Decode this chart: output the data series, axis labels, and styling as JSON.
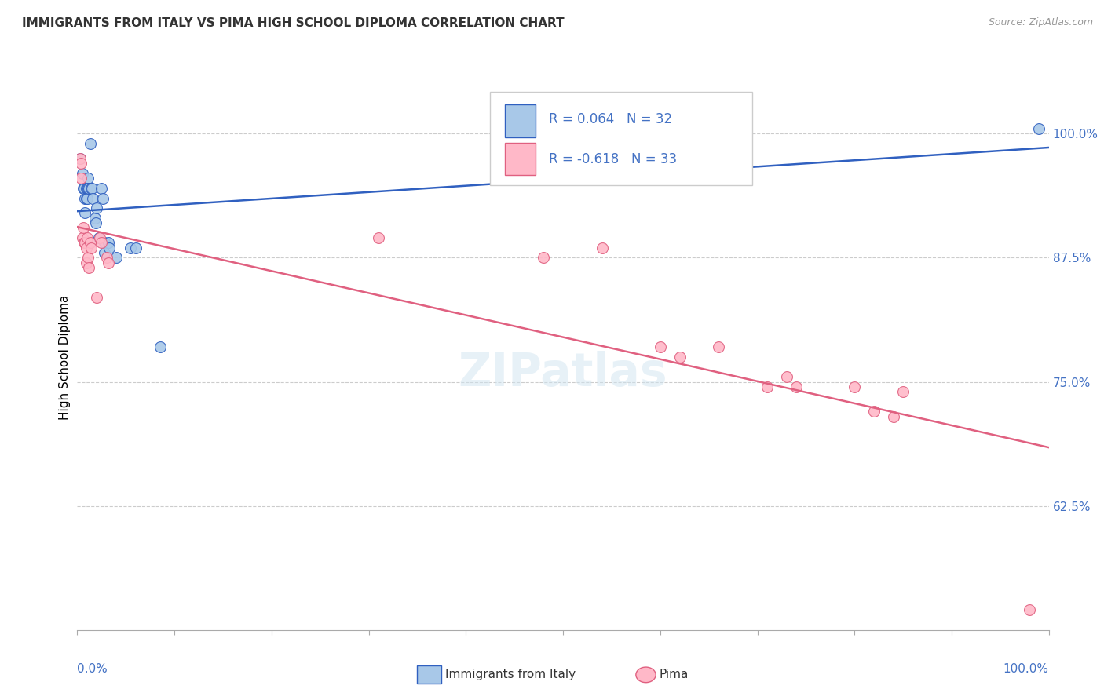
{
  "title": "IMMIGRANTS FROM ITALY VS PIMA HIGH SCHOOL DIPLOMA CORRELATION CHART",
  "source": "Source: ZipAtlas.com",
  "ylabel": "High School Diploma",
  "legend_label1": "Immigrants from Italy",
  "legend_label2": "Pima",
  "r1": 0.064,
  "n1": 32,
  "r2": -0.618,
  "n2": 33,
  "color_blue": "#A8C8E8",
  "color_pink": "#FFB8C8",
  "color_blue_line": "#3060C0",
  "color_pink_line": "#E06080",
  "color_blue_text": "#4472C4",
  "color_axis_text": "#4472C4",
  "ytick_labels": [
    "62.5%",
    "75.0%",
    "87.5%",
    "100.0%"
  ],
  "ytick_values": [
    0.625,
    0.75,
    0.875,
    1.0
  ],
  "xlim": [
    0.0,
    1.0
  ],
  "ylim": [
    0.5,
    1.05
  ],
  "blue_points": [
    [
      0.003,
      0.975
    ],
    [
      0.005,
      0.96
    ],
    [
      0.006,
      0.945
    ],
    [
      0.007,
      0.945
    ],
    [
      0.008,
      0.935
    ],
    [
      0.008,
      0.92
    ],
    [
      0.009,
      0.945
    ],
    [
      0.009,
      0.935
    ],
    [
      0.01,
      0.945
    ],
    [
      0.01,
      0.935
    ],
    [
      0.011,
      0.955
    ],
    [
      0.011,
      0.945
    ],
    [
      0.012,
      0.945
    ],
    [
      0.013,
      0.99
    ],
    [
      0.014,
      0.945
    ],
    [
      0.015,
      0.945
    ],
    [
      0.016,
      0.935
    ],
    [
      0.018,
      0.915
    ],
    [
      0.019,
      0.91
    ],
    [
      0.02,
      0.925
    ],
    [
      0.022,
      0.895
    ],
    [
      0.025,
      0.945
    ],
    [
      0.026,
      0.935
    ],
    [
      0.028,
      0.89
    ],
    [
      0.028,
      0.88
    ],
    [
      0.032,
      0.89
    ],
    [
      0.033,
      0.885
    ],
    [
      0.04,
      0.875
    ],
    [
      0.055,
      0.885
    ],
    [
      0.06,
      0.885
    ],
    [
      0.085,
      0.785
    ],
    [
      0.99,
      1.005
    ]
  ],
  "pink_points": [
    [
      0.003,
      0.975
    ],
    [
      0.004,
      0.97
    ],
    [
      0.004,
      0.955
    ],
    [
      0.005,
      0.895
    ],
    [
      0.006,
      0.905
    ],
    [
      0.007,
      0.89
    ],
    [
      0.008,
      0.89
    ],
    [
      0.009,
      0.885
    ],
    [
      0.009,
      0.87
    ],
    [
      0.01,
      0.895
    ],
    [
      0.011,
      0.875
    ],
    [
      0.012,
      0.865
    ],
    [
      0.013,
      0.89
    ],
    [
      0.014,
      0.885
    ],
    [
      0.02,
      0.835
    ],
    [
      0.023,
      0.895
    ],
    [
      0.025,
      0.89
    ],
    [
      0.03,
      0.875
    ],
    [
      0.032,
      0.87
    ],
    [
      0.31,
      0.895
    ],
    [
      0.48,
      0.875
    ],
    [
      0.54,
      0.885
    ],
    [
      0.6,
      0.785
    ],
    [
      0.62,
      0.775
    ],
    [
      0.66,
      0.785
    ],
    [
      0.71,
      0.745
    ],
    [
      0.73,
      0.755
    ],
    [
      0.74,
      0.745
    ],
    [
      0.8,
      0.745
    ],
    [
      0.82,
      0.72
    ],
    [
      0.84,
      0.715
    ],
    [
      0.85,
      0.74
    ],
    [
      0.98,
      0.52
    ]
  ],
  "xtick_positions": [
    0.0,
    0.1,
    0.2,
    0.3,
    0.4,
    0.5,
    0.6,
    0.7,
    0.8,
    0.9,
    1.0
  ]
}
